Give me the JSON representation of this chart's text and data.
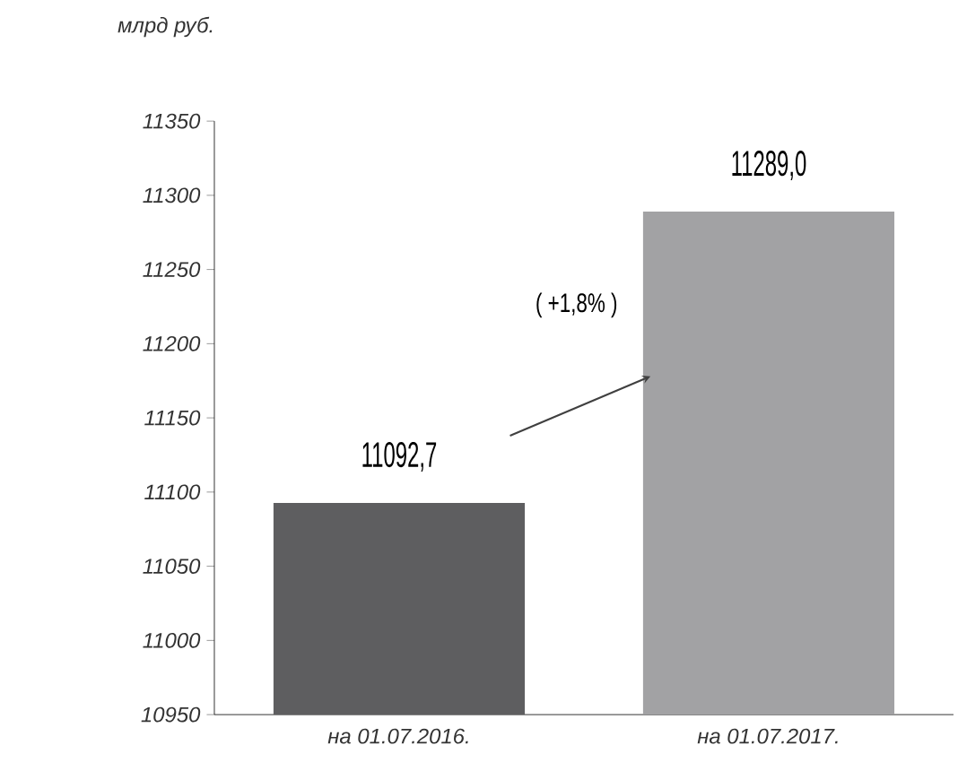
{
  "chart_data": {
    "type": "bar",
    "ylabel": "млрд руб.",
    "categories": [
      "на 01.07.2016.",
      "на 01.07.2017."
    ],
    "values": [
      11092.7,
      11289.0
    ],
    "colors": [
      "#5e5e60",
      "#a2a2a4"
    ],
    "value_labels": [
      "11092,7",
      "11289,0"
    ],
    "ylim": [
      10950,
      11350
    ],
    "yticks": [
      10950,
      11000,
      11050,
      11100,
      11150,
      11200,
      11250,
      11300,
      11350
    ],
    "annotations": [
      "( +1,8% )"
    ],
    "grid": false
  }
}
